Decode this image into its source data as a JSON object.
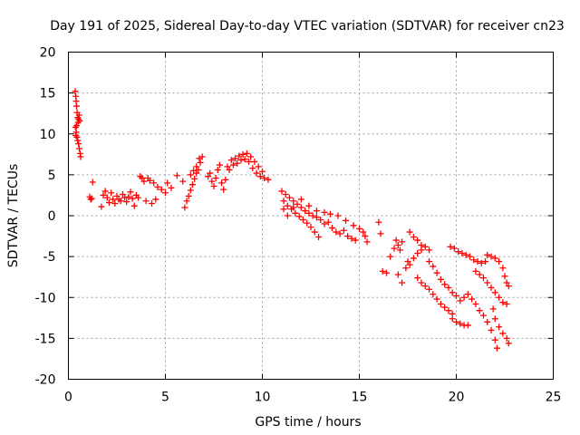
{
  "chart_data": {
    "type": "scatter",
    "title": "Day 191 of 2025, Sidereal Day-to-day VTEC variation (SDTVAR) for receiver cn23",
    "xlabel": "GPS time / hours",
    "ylabel": "SDTVAR / TECUs",
    "xlim": [
      0,
      25
    ],
    "ylim": [
      -20,
      20
    ],
    "xticks": [
      0,
      5,
      10,
      15,
      20,
      25
    ],
    "yticks": [
      -20,
      -15,
      -10,
      -5,
      0,
      5,
      10,
      15,
      20
    ],
    "xtick_labels": [
      "0",
      "5",
      "10",
      "15",
      "20",
      "25"
    ],
    "ytick_labels": [
      "-20",
      "-15",
      "-10",
      "-5",
      "0",
      "5",
      "10",
      "15",
      "20"
    ],
    "grid": true,
    "marker": "+",
    "color": "#ff0000",
    "series": [
      {
        "name": "SDTVAR",
        "points": [
          [
            0.35,
            15.2
          ],
          [
            0.38,
            14.6
          ],
          [
            0.4,
            14.0
          ],
          [
            0.42,
            13.4
          ],
          [
            0.45,
            12.6
          ],
          [
            0.48,
            12.0
          ],
          [
            0.5,
            11.4
          ],
          [
            0.52,
            11.8
          ],
          [
            0.55,
            12.3
          ],
          [
            0.58,
            11.6
          ],
          [
            0.36,
            10.8
          ],
          [
            0.4,
            10.2
          ],
          [
            0.44,
            9.6
          ],
          [
            0.48,
            9.2
          ],
          [
            0.52,
            8.8
          ],
          [
            0.56,
            8.2
          ],
          [
            0.6,
            7.6
          ],
          [
            0.63,
            7.2
          ],
          [
            0.42,
            11.0
          ],
          [
            0.38,
            9.8
          ],
          [
            1.1,
            2.3
          ],
          [
            1.2,
            2.1
          ],
          [
            1.25,
            4.1
          ],
          [
            1.15,
            2.0
          ],
          [
            1.7,
            1.1
          ],
          [
            1.8,
            2.5
          ],
          [
            1.9,
            3.0
          ],
          [
            2.0,
            2.2
          ],
          [
            2.1,
            1.6
          ],
          [
            2.2,
            2.8
          ],
          [
            2.3,
            2.0
          ],
          [
            2.4,
            1.5
          ],
          [
            2.5,
            2.4
          ],
          [
            2.6,
            2.0
          ],
          [
            2.7,
            1.8
          ],
          [
            2.8,
            2.6
          ],
          [
            2.9,
            2.2
          ],
          [
            3.0,
            1.7
          ],
          [
            3.1,
            2.3
          ],
          [
            3.2,
            2.9
          ],
          [
            3.3,
            2.1
          ],
          [
            3.4,
            1.2
          ],
          [
            3.5,
            2.5
          ],
          [
            3.6,
            2.2
          ],
          [
            3.7,
            4.8
          ],
          [
            3.8,
            4.6
          ],
          [
            3.9,
            4.2
          ],
          [
            4.0,
            1.8
          ],
          [
            4.1,
            4.6
          ],
          [
            4.2,
            4.3
          ],
          [
            4.3,
            1.5
          ],
          [
            4.4,
            4.0
          ],
          [
            4.5,
            2.0
          ],
          [
            4.6,
            3.5
          ],
          [
            4.8,
            3.2
          ],
          [
            5.0,
            2.8
          ],
          [
            5.1,
            4.0
          ],
          [
            5.3,
            3.4
          ],
          [
            5.6,
            4.9
          ],
          [
            5.9,
            4.2
          ],
          [
            6.0,
            1.0
          ],
          [
            6.1,
            1.8
          ],
          [
            6.2,
            2.4
          ],
          [
            6.3,
            3.1
          ],
          [
            6.4,
            3.8
          ],
          [
            6.5,
            4.5
          ],
          [
            6.6,
            5.2
          ],
          [
            6.7,
            5.6
          ],
          [
            6.8,
            6.5
          ],
          [
            6.9,
            7.2
          ],
          [
            6.3,
            5.0
          ],
          [
            6.45,
            5.5
          ],
          [
            6.6,
            6.0
          ],
          [
            6.75,
            7.0
          ],
          [
            7.2,
            4.8
          ],
          [
            7.3,
            5.2
          ],
          [
            7.4,
            4.2
          ],
          [
            7.5,
            3.6
          ],
          [
            7.6,
            4.6
          ],
          [
            7.7,
            5.6
          ],
          [
            7.8,
            6.2
          ],
          [
            7.9,
            4.0
          ],
          [
            8.0,
            3.2
          ],
          [
            8.1,
            4.4
          ],
          [
            8.2,
            6.0
          ],
          [
            8.4,
            6.8
          ],
          [
            8.6,
            7.0
          ],
          [
            8.8,
            7.3
          ],
          [
            9.0,
            7.5
          ],
          [
            9.2,
            7.6
          ],
          [
            9.4,
            7.2
          ],
          [
            9.6,
            6.6
          ],
          [
            9.8,
            6.0
          ],
          [
            10.0,
            5.4
          ],
          [
            8.3,
            5.6
          ],
          [
            8.5,
            6.2
          ],
          [
            8.7,
            6.4
          ],
          [
            8.9,
            6.8
          ],
          [
            9.1,
            6.9
          ],
          [
            9.3,
            6.6
          ],
          [
            9.5,
            5.8
          ],
          [
            9.7,
            5.2
          ],
          [
            9.9,
            4.8
          ],
          [
            10.1,
            4.6
          ],
          [
            10.3,
            4.4
          ],
          [
            11.0,
            3.0
          ],
          [
            11.2,
            2.6
          ],
          [
            11.4,
            2.2
          ],
          [
            11.6,
            1.8
          ],
          [
            11.8,
            1.4
          ],
          [
            12.0,
            1.0
          ],
          [
            12.2,
            0.6
          ],
          [
            12.4,
            0.3
          ],
          [
            12.6,
            0.0
          ],
          [
            12.8,
            -0.2
          ],
          [
            11.1,
            1.8
          ],
          [
            11.3,
            1.2
          ],
          [
            11.5,
            0.8
          ],
          [
            11.7,
            0.3
          ],
          [
            11.9,
            -0.1
          ],
          [
            12.1,
            -0.5
          ],
          [
            12.3,
            -0.9
          ],
          [
            12.5,
            -1.4
          ],
          [
            12.7,
            -2.0
          ],
          [
            12.9,
            -2.6
          ],
          [
            11.1,
            0.8
          ],
          [
            11.3,
            0.0
          ],
          [
            11.6,
            1.0
          ],
          [
            12.0,
            2.0
          ],
          [
            12.4,
            1.2
          ],
          [
            12.8,
            0.6
          ],
          [
            13.2,
            0.4
          ],
          [
            13.0,
            -0.5
          ],
          [
            13.2,
            -1.0
          ],
          [
            13.4,
            -0.8
          ],
          [
            13.6,
            -1.5
          ],
          [
            13.8,
            -2.0
          ],
          [
            14.0,
            -2.2
          ],
          [
            14.2,
            -1.8
          ],
          [
            14.4,
            -2.5
          ],
          [
            14.6,
            -2.8
          ],
          [
            14.8,
            -3.0
          ],
          [
            13.5,
            0.2
          ],
          [
            13.9,
            0.0
          ],
          [
            14.3,
            -0.6
          ],
          [
            14.7,
            -1.2
          ],
          [
            15.0,
            -1.6
          ],
          [
            15.2,
            -2.0
          ],
          [
            15.3,
            -2.5
          ],
          [
            15.4,
            -3.2
          ],
          [
            16.0,
            -0.8
          ],
          [
            16.1,
            -2.2
          ],
          [
            16.2,
            -6.8
          ],
          [
            16.4,
            -7.0
          ],
          [
            16.6,
            -5.0
          ],
          [
            16.8,
            -4.0
          ],
          [
            16.9,
            -3.0
          ],
          [
            17.0,
            -3.6
          ],
          [
            17.1,
            -4.2
          ],
          [
            17.2,
            -3.2
          ],
          [
            17.0,
            -7.2
          ],
          [
            17.2,
            -8.2
          ],
          [
            17.4,
            -6.4
          ],
          [
            17.5,
            -5.6
          ],
          [
            17.6,
            -6.0
          ],
          [
            17.8,
            -5.2
          ],
          [
            18.0,
            -4.6
          ],
          [
            18.2,
            -4.2
          ],
          [
            18.4,
            -3.8
          ],
          [
            18.6,
            -4.2
          ],
          [
            17.6,
            -2.0
          ],
          [
            17.8,
            -2.6
          ],
          [
            18.0,
            -3.0
          ],
          [
            18.2,
            -3.6
          ],
          [
            18.0,
            -7.6
          ],
          [
            18.2,
            -8.2
          ],
          [
            18.4,
            -8.6
          ],
          [
            18.6,
            -9.0
          ],
          [
            18.8,
            -9.6
          ],
          [
            19.0,
            -10.2
          ],
          [
            19.2,
            -10.8
          ],
          [
            19.4,
            -11.2
          ],
          [
            19.6,
            -11.6
          ],
          [
            19.8,
            -12.0
          ],
          [
            18.6,
            -5.6
          ],
          [
            18.8,
            -6.2
          ],
          [
            19.0,
            -7.0
          ],
          [
            19.2,
            -7.8
          ],
          [
            19.4,
            -8.4
          ],
          [
            19.6,
            -8.8
          ],
          [
            19.8,
            -9.4
          ],
          [
            20.0,
            -9.8
          ],
          [
            20.2,
            -10.4
          ],
          [
            19.7,
            -3.8
          ],
          [
            19.9,
            -4.0
          ],
          [
            20.1,
            -4.4
          ],
          [
            20.3,
            -4.6
          ],
          [
            20.5,
            -4.8
          ],
          [
            20.7,
            -5.0
          ],
          [
            20.9,
            -5.4
          ],
          [
            21.1,
            -5.6
          ],
          [
            21.3,
            -5.8
          ],
          [
            21.5,
            -5.6
          ],
          [
            20.0,
            -13.0
          ],
          [
            20.2,
            -13.2
          ],
          [
            20.4,
            -13.4
          ],
          [
            20.6,
            -13.4
          ],
          [
            19.8,
            -12.6
          ],
          [
            20.4,
            -10.0
          ],
          [
            20.6,
            -9.6
          ],
          [
            20.8,
            -10.2
          ],
          [
            21.0,
            -10.8
          ],
          [
            21.2,
            -11.6
          ],
          [
            21.4,
            -12.2
          ],
          [
            21.6,
            -13.0
          ],
          [
            21.8,
            -14.0
          ],
          [
            22.0,
            -15.2
          ],
          [
            22.1,
            -16.2
          ],
          [
            21.0,
            -6.8
          ],
          [
            21.2,
            -7.2
          ],
          [
            21.4,
            -7.6
          ],
          [
            21.6,
            -8.2
          ],
          [
            21.8,
            -8.8
          ],
          [
            22.0,
            -9.4
          ],
          [
            22.2,
            -10.0
          ],
          [
            22.4,
            -10.6
          ],
          [
            22.6,
            -10.8
          ],
          [
            21.6,
            -4.8
          ],
          [
            21.8,
            -5.0
          ],
          [
            22.0,
            -5.2
          ],
          [
            22.2,
            -5.6
          ],
          [
            22.4,
            -6.4
          ],
          [
            22.5,
            -7.4
          ],
          [
            22.6,
            -8.2
          ],
          [
            22.7,
            -8.6
          ],
          [
            22.0,
            -12.6
          ],
          [
            22.2,
            -13.6
          ],
          [
            22.4,
            -14.4
          ],
          [
            22.6,
            -15.0
          ],
          [
            22.7,
            -15.6
          ],
          [
            21.9,
            -11.4
          ]
        ]
      }
    ]
  }
}
